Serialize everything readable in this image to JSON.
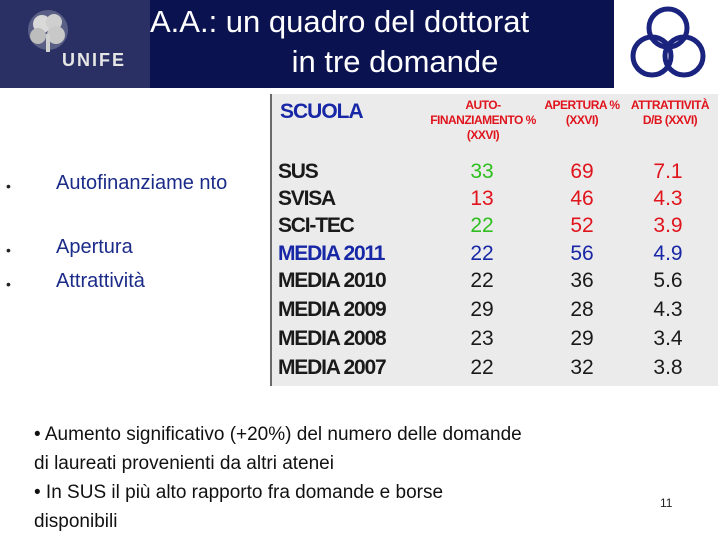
{
  "header": {
    "logo_text": "UNIFE",
    "title_line1": "A.A.: un quadro del dottorat",
    "title_line2": "in tre domande"
  },
  "bullets": [
    "Autofinanziame nto",
    "Apertura",
    "Attrattività"
  ],
  "table": {
    "scuola_label": "SCUOLA",
    "col_autofinanziamento": "AUTO- FINANZIAMENTO % (XXVI)",
    "col_apertura": "APERTURA % (XXVI)",
    "col_attrattivita": "ATTRATTIVITÀ D/B (XXVI)",
    "rows": [
      {
        "label": "SUS",
        "auto": "33",
        "apertura": "69",
        "attr": "7.1"
      },
      {
        "label": "SVISA",
        "auto": "13",
        "apertura": "46",
        "attr": "4.3"
      },
      {
        "label": "SCI-TEC",
        "auto": "22",
        "apertura": "52",
        "attr": "3.9"
      },
      {
        "label": "MEDIA 2011",
        "auto": "22",
        "apertura": "56",
        "attr": "4.9"
      },
      {
        "label": "MEDIA  2010",
        "auto": "22",
        "apertura": "36",
        "attr": "5.6"
      },
      {
        "label": "MEDIA  2009",
        "auto": "29",
        "apertura": "28",
        "attr": "4.3"
      },
      {
        "label": "MEDIA  2008",
        "auto": "23",
        "apertura": "29",
        "attr": "3.4"
      },
      {
        "label": "MEDIA  2007",
        "auto": "22",
        "apertura": "32",
        "attr": "3.8"
      }
    ]
  },
  "notes": {
    "line1": "• Aumento significativo (+20%) del numero delle domande",
    "line2": "di laureati provenienti da altri atenei",
    "line3": "• In SUS il più alto rapporto fra domande e borse",
    "line4": "disponibili"
  },
  "page_number": "11",
  "colors": {
    "header_bg": "#0b1250",
    "red": "#e0141c",
    "green": "#2fbf1f",
    "blue": "#1727a6",
    "dark": "#1a1a1a"
  }
}
